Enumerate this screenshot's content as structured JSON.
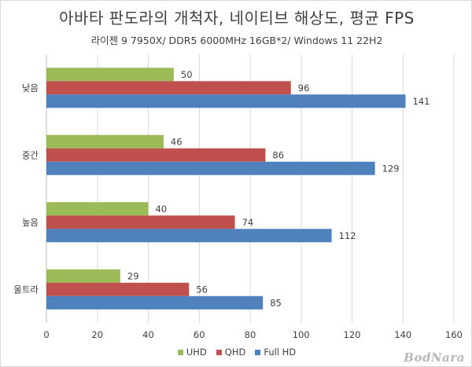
{
  "chart_data": {
    "type": "bar",
    "orientation": "horizontal",
    "title": "아바타 판도라의 개척자, 네이티브 해상도, 평균 FPS",
    "subtitle": "라이젠 9 7950X/ DDR5 6000MHz 16GB*2/ Windows 11 22H2",
    "categories": [
      "낮음",
      "중간",
      "높음",
      "울트라"
    ],
    "series": [
      {
        "name": "UHD",
        "values": [
          50,
          46,
          40,
          29
        ],
        "color": "#9bbb59"
      },
      {
        "name": "QHD",
        "values": [
          96,
          86,
          74,
          56
        ],
        "color": "#c0504d"
      },
      {
        "name": "Full HD",
        "values": [
          141,
          129,
          112,
          85
        ],
        "color": "#4f81bd"
      }
    ],
    "xlim": [
      0,
      160
    ],
    "xticks": [
      0,
      20,
      40,
      60,
      80,
      100,
      120,
      140,
      160
    ],
    "grid": true,
    "legend_position": "bottom",
    "xlabel": "",
    "ylabel": ""
  },
  "watermark": "BodNara"
}
